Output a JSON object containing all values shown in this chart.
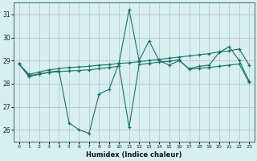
{
  "xlabel": "Humidex (Indice chaleur)",
  "xlim": [
    -0.5,
    23.5
  ],
  "ylim": [
    25.5,
    31.5
  ],
  "yticks": [
    26,
    27,
    28,
    29,
    30,
    31
  ],
  "xticks": [
    0,
    1,
    2,
    3,
    4,
    5,
    6,
    7,
    8,
    9,
    10,
    11,
    12,
    13,
    14,
    15,
    16,
    17,
    18,
    19,
    20,
    21,
    22,
    23
  ],
  "bg_color": "#d6f0f0",
  "grid_color": "#c0b8c8",
  "line_color": "#1a7068",
  "line1_y": [
    28.85,
    28.3,
    28.4,
    28.5,
    28.55,
    26.3,
    26.0,
    25.85,
    27.55,
    27.75,
    28.9,
    31.2,
    29.0,
    29.85,
    29.0,
    28.8,
    29.0,
    28.65,
    28.75,
    28.8,
    29.35,
    29.6,
    29.0,
    28.1
  ],
  "line2_y": [
    28.85,
    28.4,
    28.5,
    28.6,
    28.65,
    28.7,
    28.72,
    28.75,
    28.8,
    28.82,
    28.88,
    28.9,
    28.95,
    29.0,
    29.05,
    29.1,
    29.15,
    29.2,
    29.25,
    29.3,
    29.38,
    29.42,
    29.5,
    28.8
  ],
  "line3_y": [
    28.85,
    28.35,
    28.42,
    28.48,
    28.52,
    28.55,
    28.57,
    28.6,
    28.65,
    28.7,
    28.75,
    26.1,
    28.82,
    28.88,
    28.93,
    28.97,
    29.03,
    28.62,
    28.66,
    28.7,
    28.75,
    28.8,
    28.85,
    28.05
  ]
}
